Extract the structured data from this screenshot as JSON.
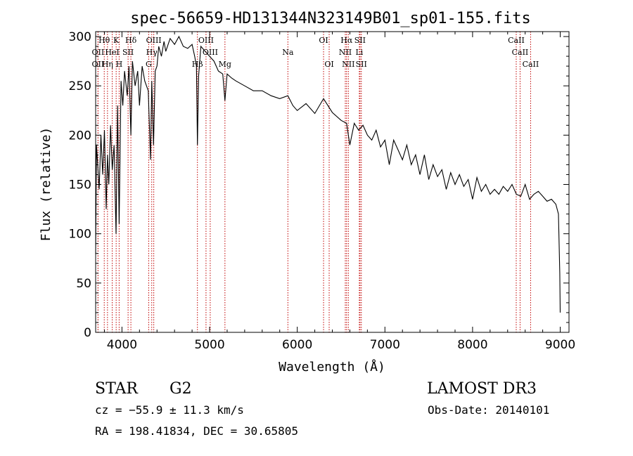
{
  "chart_data": {
    "type": "line",
    "title": "spec-56659-HD131344N323149B01_sp01-155.fits",
    "xlabel": "Wavelength (Å)",
    "ylabel": "Flux (relative)",
    "xlim": [
      3700,
      9100
    ],
    "ylim": [
      0,
      305
    ],
    "xticks": [
      4000,
      5000,
      6000,
      7000,
      8000,
      9000
    ],
    "yticks": [
      0,
      50,
      100,
      150,
      200,
      250,
      300
    ],
    "grid": false,
    "series": [
      {
        "name": "spectrum",
        "x": [
          3700,
          3710,
          3720,
          3740,
          3760,
          3780,
          3800,
          3820,
          3835,
          3850,
          3870,
          3889,
          3910,
          3933,
          3950,
          3968,
          3990,
          4010,
          4030,
          4060,
          4080,
          4102,
          4120,
          4150,
          4180,
          4200,
          4230,
          4260,
          4300,
          4326,
          4340,
          4360,
          4380,
          4400,
          4420,
          4450,
          4480,
          4500,
          4550,
          4600,
          4650,
          4700,
          4750,
          4800,
          4830,
          4850,
          4861,
          4875,
          4900,
          4950,
          5000,
          5050,
          5100,
          5150,
          5175,
          5200,
          5250,
          5300,
          5400,
          5500,
          5600,
          5700,
          5800,
          5893,
          5950,
          6000,
          6100,
          6200,
          6300,
          6400,
          6500,
          6563,
          6600,
          6650,
          6700,
          6750,
          6800,
          6850,
          6900,
          6950,
          7000,
          7050,
          7100,
          7150,
          7200,
          7250,
          7300,
          7350,
          7400,
          7450,
          7500,
          7550,
          7600,
          7650,
          7700,
          7750,
          7800,
          7850,
          7900,
          7950,
          8000,
          8050,
          8100,
          8150,
          8200,
          8250,
          8300,
          8350,
          8400,
          8450,
          8500,
          8550,
          8600,
          8650,
          8700,
          8750,
          8800,
          8850,
          8900,
          8950,
          8980,
          8995,
          9000
        ],
        "values": [
          80,
          190,
          175,
          145,
          200,
          160,
          205,
          125,
          180,
          150,
          210,
          165,
          190,
          100,
          230,
          110,
          255,
          230,
          265,
          240,
          270,
          200,
          275,
          250,
          265,
          230,
          270,
          255,
          245,
          175,
          255,
          190,
          265,
          270,
          290,
          280,
          295,
          285,
          298,
          292,
          300,
          290,
          288,
          292,
          280,
          270,
          190,
          260,
          290,
          285,
          280,
          275,
          265,
          262,
          235,
          262,
          258,
          255,
          250,
          245,
          245,
          240,
          237,
          240,
          230,
          225,
          232,
          222,
          237,
          223,
          215,
          212,
          190,
          212,
          205,
          210,
          200,
          195,
          205,
          188,
          195,
          170,
          195,
          185,
          175,
          190,
          170,
          180,
          160,
          180,
          155,
          170,
          158,
          165,
          145,
          162,
          150,
          160,
          148,
          155,
          135,
          157,
          143,
          150,
          140,
          145,
          140,
          148,
          143,
          150,
          140,
          138,
          150,
          135,
          140,
          143,
          138,
          133,
          135,
          130,
          120,
          60,
          20
        ]
      }
    ],
    "lines": [
      {
        "name": "CaII",
        "x": 8498,
        "row": 0
      },
      {
        "name": "CaII",
        "x": 8542,
        "row": 1
      },
      {
        "name": "CaII",
        "x": 8662,
        "row": 2
      },
      {
        "name": "Hθ",
        "x": 3798,
        "row": 0
      },
      {
        "name": "OII",
        "x": 3727,
        "row": 1
      },
      {
        "name": "OII",
        "x": 3727,
        "row": 2
      },
      {
        "name": "K",
        "x": 3934,
        "row": 0
      },
      {
        "name": "HeI",
        "x": 3889,
        "row": 1
      },
      {
        "name": "Hη",
        "x": 3835,
        "row": 2
      },
      {
        "name": "SII",
        "x": 4070,
        "row": 1
      },
      {
        "name": "H",
        "x": 3968,
        "row": 2
      },
      {
        "name": "Hδ",
        "x": 4102,
        "row": 0
      },
      {
        "name": "OIII",
        "x": 4363,
        "row": 0
      },
      {
        "name": "Hγ",
        "x": 4340,
        "row": 1
      },
      {
        "name": "G",
        "x": 4305,
        "row": 2
      },
      {
        "name": "OIII",
        "x": 4959,
        "row": 0
      },
      {
        "name": "OIII",
        "x": 5007,
        "row": 1
      },
      {
        "name": "Hβ",
        "x": 4861,
        "row": 2
      },
      {
        "name": "Mg",
        "x": 5175,
        "row": 2
      },
      {
        "name": "Na",
        "x": 5893,
        "row": 1
      },
      {
        "name": "OI",
        "x": 6300,
        "row": 0
      },
      {
        "name": "OI",
        "x": 6364,
        "row": 2
      },
      {
        "name": "Hα",
        "x": 6563,
        "row": 0
      },
      {
        "name": "NII",
        "x": 6548,
        "row": 1
      },
      {
        "name": "NII",
        "x": 6583,
        "row": 2
      },
      {
        "name": "SII",
        "x": 6716,
        "row": 0
      },
      {
        "name": "Li",
        "x": 6708,
        "row": 1
      },
      {
        "name": "SII",
        "x": 6731,
        "row": 2
      }
    ],
    "info": {
      "object_class": "STAR",
      "subclass": "G2",
      "survey": "LAMOST DR3",
      "redshift": "cz = −55.9 ± 11.3 km/s",
      "obs_date": "Obs-Date: 20140101",
      "coords": "RA = 198.41834, DEC =  30.65805"
    }
  },
  "colors": {
    "line": "#000000",
    "marker": "#c00000",
    "background": "#ffffff"
  }
}
